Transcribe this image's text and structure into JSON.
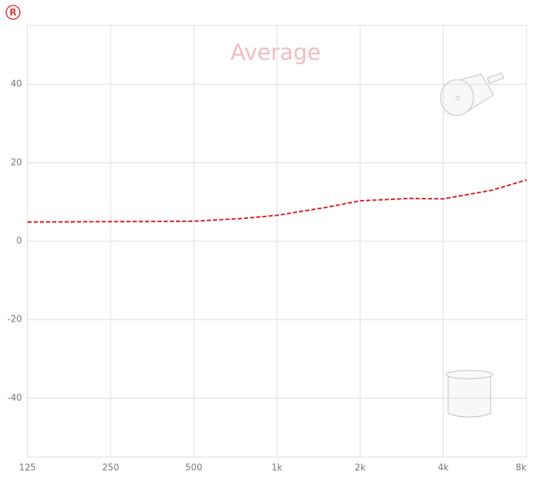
{
  "chart_data": {
    "type": "line",
    "title": "Average",
    "ear": "R",
    "x": [
      125,
      250,
      500,
      750,
      1000,
      1500,
      2000,
      3000,
      4000,
      6000,
      8000
    ],
    "series": [
      {
        "color": "#d9202a",
        "values": [
          4.9,
          5,
          5.1,
          5.8,
          6.6,
          8.6,
          10.3,
          10.9,
          10.8,
          13,
          15.6
        ]
      }
    ],
    "xlim": [
      125,
      8000
    ],
    "xscale": "log",
    "xticks": [
      125,
      250,
      500,
      {
        "value": 1000,
        "label": "1k"
      },
      {
        "value": 2000,
        "label": "2k"
      },
      {
        "value": 4000,
        "label": "4k"
      },
      {
        "value": 8000,
        "label": "8k"
      }
    ],
    "ylim": [
      -55,
      55
    ],
    "yticks": [
      -40,
      -20,
      0,
      20,
      40
    ],
    "grid": true
  }
}
